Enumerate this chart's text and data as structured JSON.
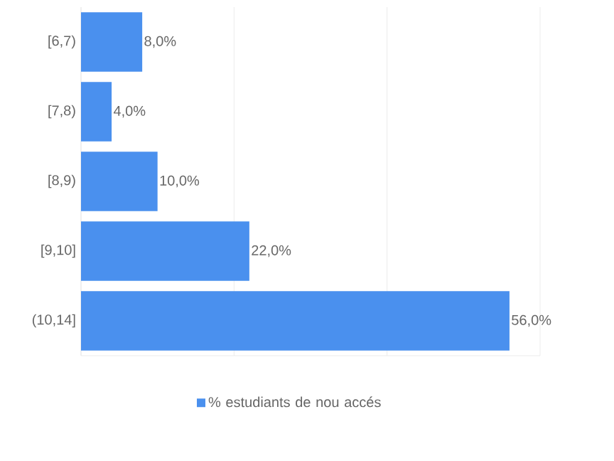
{
  "chart_data": {
    "type": "bar",
    "orientation": "horizontal",
    "categories": [
      "[6,7)",
      "[7,8)",
      "[8,9)",
      "[9,10]",
      "(10,14]"
    ],
    "series": [
      {
        "name": "% estudiants de nou accés",
        "color": "#4a90ee",
        "values": [
          8,
          4,
          10,
          22,
          56
        ],
        "value_labels": [
          "8,0%",
          "4,0%",
          "10,0%",
          "22,0%",
          "56,0%"
        ]
      }
    ],
    "xlim": [
      0,
      60
    ],
    "xticks": [
      {
        "value": 0,
        "label": null
      },
      {
        "value": 20,
        "label": null
      },
      {
        "value": 40,
        "label": null
      },
      {
        "value": 60,
        "label": null
      }
    ],
    "tick_labels": "y",
    "grid": "x",
    "legend": "bottom"
  }
}
